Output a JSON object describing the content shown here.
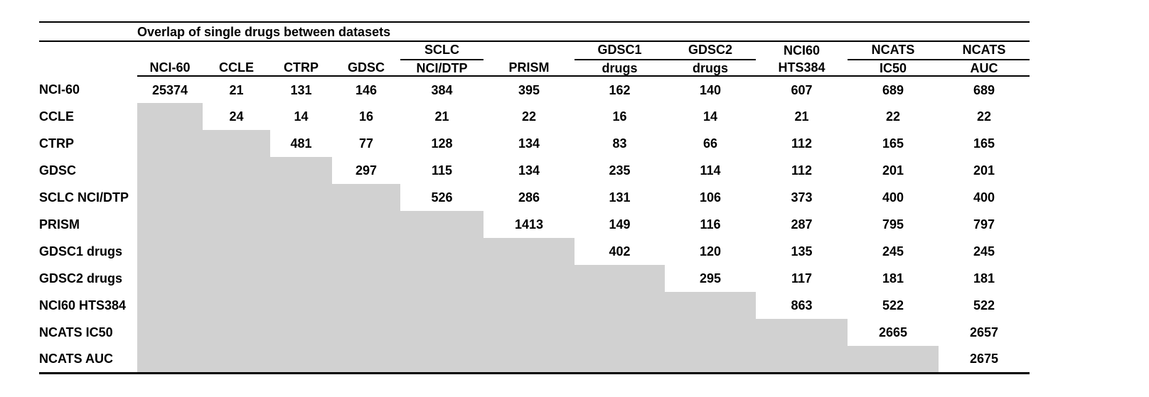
{
  "page": {
    "background_color": "#ffffff",
    "text_color": "#000000",
    "shaded_cell_color": "#d1d1d1"
  },
  "table": {
    "title": "Overlap of single drugs between datasets",
    "top_header": [
      "",
      "",
      "",
      "",
      "SCLC",
      "",
      "GDSC1",
      "GDSC2",
      "NCI60",
      "NCATS",
      "NCATS"
    ],
    "underlined_top_header_indices": [
      4,
      6,
      7,
      9,
      10
    ],
    "bottom_header": [
      "NCI-60",
      "CCLE",
      "CTRP",
      "GDSC",
      "NCI/DTP",
      "PRISM",
      "drugs",
      "drugs",
      "HTS384",
      "IC50",
      "AUC"
    ],
    "row_labels": [
      "NCI-60",
      "CCLE",
      "CTRP",
      "GDSC",
      "SCLC NCI/DTP",
      "PRISM",
      "GDSC1 drugs",
      "GDSC2 drugs",
      "NCI60 HTS384",
      "NCATS IC50",
      "NCATS AUC"
    ],
    "shading_note": "lower triangle below the diagonal is shaded gray with no values"
  },
  "chart_data": {
    "type": "table",
    "title": "Overlap of single drugs between datasets",
    "row_labels": [
      "NCI-60",
      "CCLE",
      "CTRP",
      "GDSC",
      "SCLC NCI/DTP",
      "PRISM",
      "GDSC1 drugs",
      "GDSC2 drugs",
      "NCI60 HTS384",
      "NCATS IC50",
      "NCATS AUC"
    ],
    "col_labels": [
      "NCI-60",
      "CCLE",
      "CTRP",
      "GDSC",
      "SCLC NCI/DTP",
      "PRISM",
      "GDSC1 drugs",
      "GDSC2 drugs",
      "NCI60 HTS384",
      "NCATS IC50",
      "NCATS AUC"
    ],
    "matrix": [
      [
        25374,
        21,
        131,
        146,
        384,
        395,
        162,
        140,
        607,
        689,
        689
      ],
      [
        null,
        24,
        14,
        16,
        21,
        22,
        16,
        14,
        21,
        22,
        22
      ],
      [
        null,
        null,
        481,
        77,
        128,
        134,
        83,
        66,
        112,
        165,
        165
      ],
      [
        null,
        null,
        null,
        297,
        115,
        134,
        235,
        114,
        112,
        201,
        201
      ],
      [
        null,
        null,
        null,
        null,
        526,
        286,
        131,
        106,
        373,
        400,
        400
      ],
      [
        null,
        null,
        null,
        null,
        null,
        1413,
        149,
        116,
        287,
        795,
        797
      ],
      [
        null,
        null,
        null,
        null,
        null,
        null,
        402,
        120,
        135,
        245,
        245
      ],
      [
        null,
        null,
        null,
        null,
        null,
        null,
        null,
        295,
        117,
        181,
        181
      ],
      [
        null,
        null,
        null,
        null,
        null,
        null,
        null,
        null,
        863,
        522,
        522
      ],
      [
        null,
        null,
        null,
        null,
        null,
        null,
        null,
        null,
        null,
        2665,
        2657
      ],
      [
        null,
        null,
        null,
        null,
        null,
        null,
        null,
        null,
        null,
        null,
        2675
      ]
    ]
  }
}
